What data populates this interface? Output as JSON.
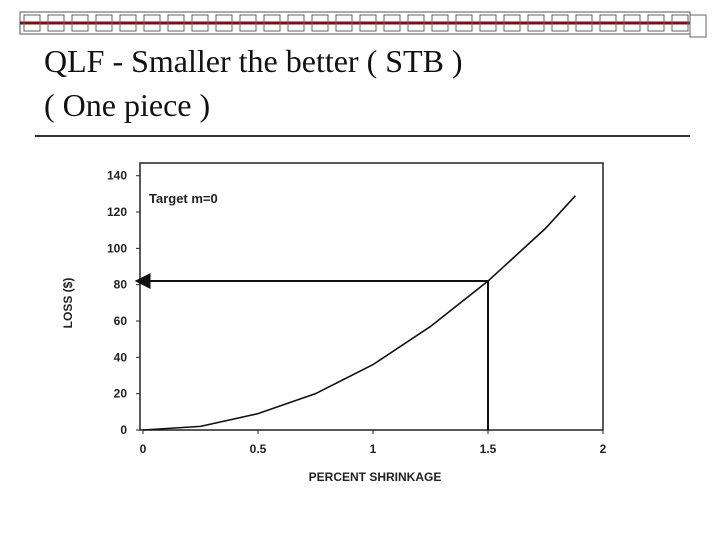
{
  "chart_data": {
    "type": "line",
    "title": "QLF - Smaller the better ( STB )",
    "subtitle": "( One piece )",
    "annotation": "Target m=0",
    "x_label": "PERCENT SHRINKAGE",
    "y_label": "LOSS ($)",
    "x": [
      0,
      0.25,
      0.5,
      0.75,
      1,
      1.25,
      1.5,
      1.75,
      1.88
    ],
    "series": [
      {
        "color": "#111111",
        "values": [
          0,
          2,
          9,
          20,
          36,
          57,
          82,
          111,
          129
        ]
      }
    ],
    "reference_point": {
      "x": 1.5,
      "y": 82
    },
    "xlim": [
      0,
      2
    ],
    "ylim": [
      0,
      147
    ],
    "xticks": [
      0,
      0.5,
      1,
      1.5,
      2
    ],
    "yticks": [
      0,
      20,
      40,
      60,
      80,
      100,
      120,
      140
    ],
    "grid": false
  }
}
